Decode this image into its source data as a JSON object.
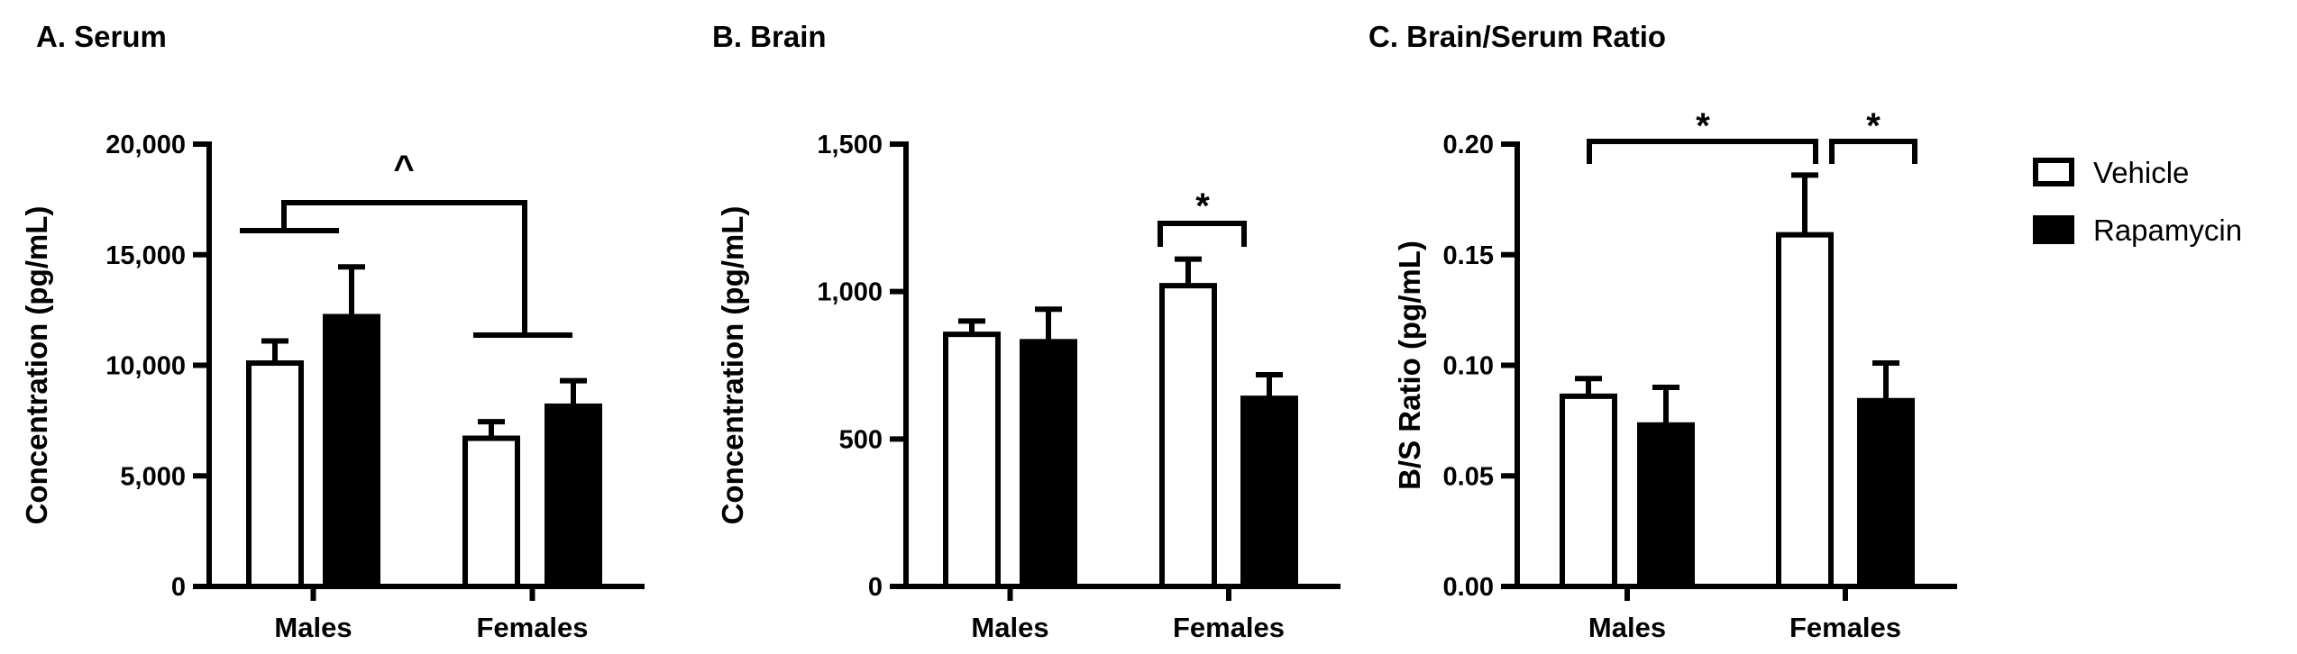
{
  "chart_data": [
    {
      "type": "bar",
      "title": "A. Serum",
      "ylabel": "Concentration (pg/mL)",
      "xlabel": "",
      "categories": [
        "Males",
        "Females"
      ],
      "ylim": [
        0,
        20000
      ],
      "yticks": [
        0,
        5000,
        10000,
        15000,
        20000
      ],
      "ytick_labels": [
        "0",
        "5,000",
        "10,000",
        "15,000",
        "20,000"
      ],
      "series": [
        {
          "name": "Vehicle",
          "values": [
            10100,
            6700
          ],
          "errors": [
            1000,
            750
          ]
        },
        {
          "name": "Rapamycin",
          "values": [
            12200,
            8150
          ],
          "errors": [
            2250,
            1150
          ]
        }
      ],
      "annotations": [
        {
          "label": "^",
          "type": "sex-main-effect",
          "compare": [
            "Males",
            "Females"
          ]
        }
      ]
    },
    {
      "type": "bar",
      "title": "B. Brain",
      "ylabel": "Concentration (pg/mL)",
      "xlabel": "",
      "categories": [
        "Males",
        "Females"
      ],
      "ylim": [
        0,
        1500
      ],
      "yticks": [
        0,
        500,
        1000,
        1500
      ],
      "ytick_labels": [
        "0",
        "500",
        "1,000",
        "1,500"
      ],
      "series": [
        {
          "name": "Vehicle",
          "values": [
            855,
            1020
          ],
          "errors": [
            45,
            90
          ]
        },
        {
          "name": "Rapamycin",
          "values": [
            830,
            638
          ],
          "errors": [
            110,
            80
          ]
        }
      ],
      "annotations": [
        {
          "label": "*",
          "type": "pairwise",
          "compare": [
            "Females/Vehicle",
            "Females/Rapamycin"
          ]
        }
      ]
    },
    {
      "type": "bar",
      "title": "C. Brain/Serum Ratio",
      "ylabel": "B/S Ratio (pg/mL)",
      "xlabel": "",
      "categories": [
        "Males",
        "Females"
      ],
      "ylim": [
        0,
        0.2
      ],
      "yticks": [
        0,
        0.05,
        0.1,
        0.15,
        0.2
      ],
      "ytick_labels": [
        "0.00",
        "0.05",
        "0.10",
        "0.15",
        "0.20"
      ],
      "series": [
        {
          "name": "Vehicle",
          "values": [
            0.086,
            0.159
          ],
          "errors": [
            0.008,
            0.027
          ]
        },
        {
          "name": "Rapamycin",
          "values": [
            0.073,
            0.084
          ],
          "errors": [
            0.017,
            0.017
          ]
        }
      ],
      "annotations": [
        {
          "label": "*",
          "type": "pairwise",
          "compare": [
            "Males/Vehicle",
            "Females/Vehicle"
          ]
        },
        {
          "label": "*",
          "type": "pairwise",
          "compare": [
            "Females/Vehicle",
            "Females/Rapamycin"
          ]
        }
      ]
    }
  ],
  "legend": {
    "placement": "right",
    "items": [
      {
        "name": "Vehicle",
        "fill": "#ffffff",
        "stroke": "#000000"
      },
      {
        "name": "Rapamycin",
        "fill": "#000000",
        "stroke": "#000000"
      }
    ]
  },
  "colors": {
    "vehicle_fill": "#ffffff",
    "rapamycin_fill": "#000000",
    "ink": "#000000"
  }
}
